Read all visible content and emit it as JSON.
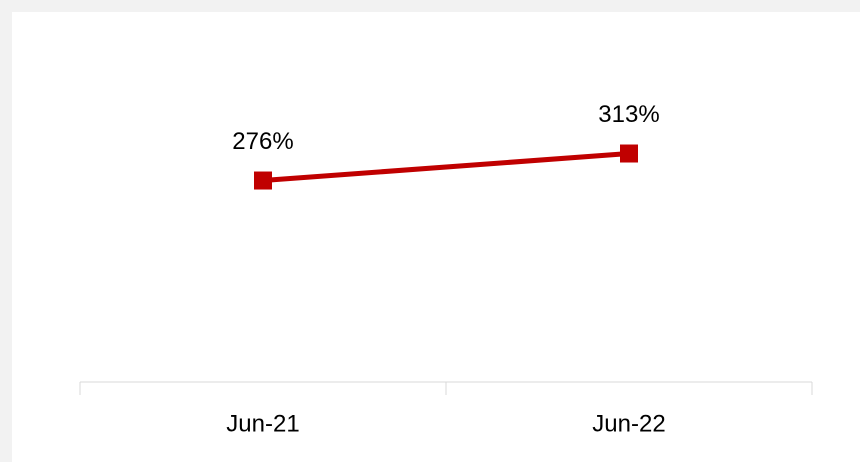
{
  "chart_data": {
    "type": "line",
    "categories": [
      "Jun-21",
      "Jun-22"
    ],
    "series": [
      {
        "color": "#c00000",
        "values": [
          276,
          313
        ],
        "value_labels": [
          "276%",
          "313%"
        ]
      }
    ],
    "ylim": [
      0,
      500
    ]
  }
}
